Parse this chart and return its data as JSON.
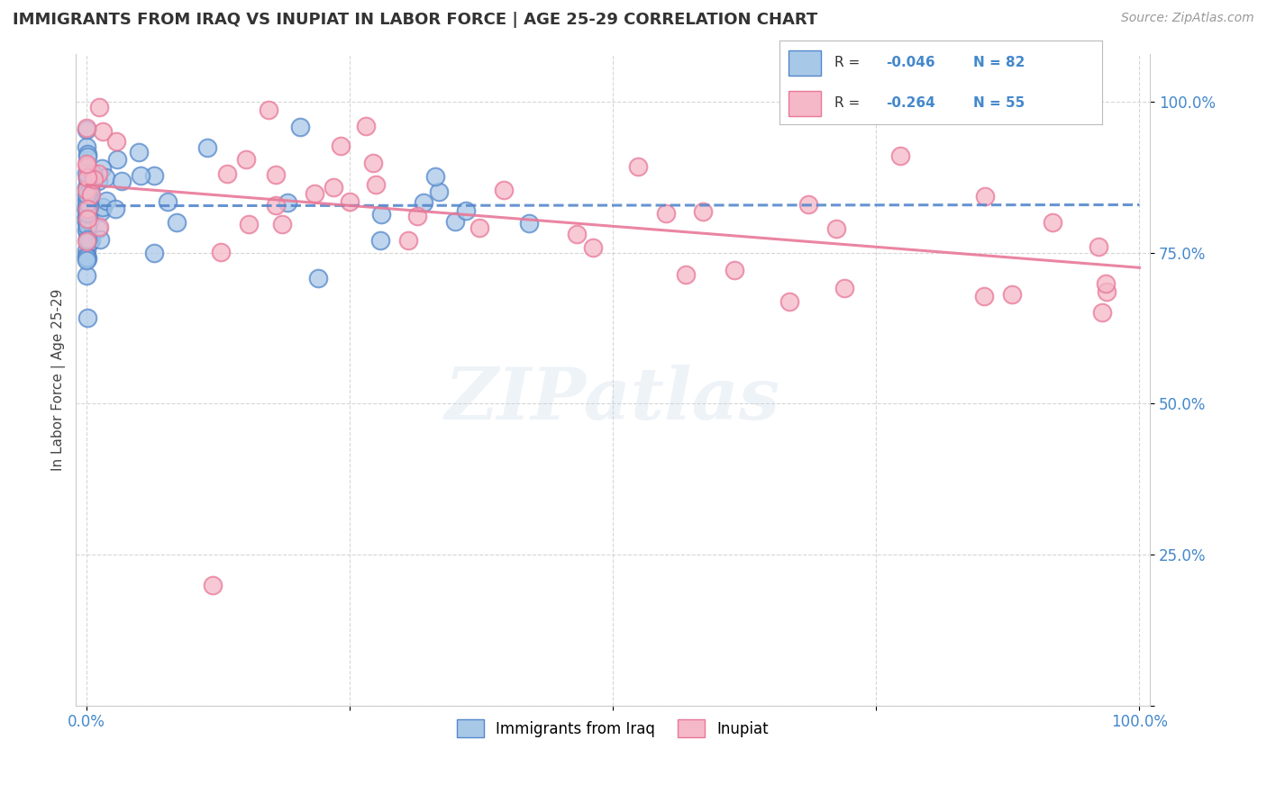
{
  "title": "IMMIGRANTS FROM IRAQ VS INUPIAT IN LABOR FORCE | AGE 25-29 CORRELATION CHART",
  "source": "Source: ZipAtlas.com",
  "ylabel": "In Labor Force | Age 25-29",
  "xlim": [
    -0.01,
    1.01
  ],
  "ylim": [
    0.0,
    1.08
  ],
  "xticks": [
    0.0,
    0.25,
    0.5,
    0.75,
    1.0
  ],
  "yticks": [
    0.0,
    0.25,
    0.5,
    0.75,
    1.0
  ],
  "xtick_labels": [
    "0.0%",
    "",
    "",
    "",
    "100.0%"
  ],
  "ytick_labels_right": [
    "",
    "25.0%",
    "50.0%",
    "75.0%",
    "100.0%"
  ],
  "series1_name": "Immigrants from Iraq",
  "series1_color": "#a8c8e8",
  "series1_edge_color": "#5588cc",
  "series1_R": -0.046,
  "series1_N": 82,
  "series2_name": "Inupiat",
  "series2_color": "#f5b8c8",
  "series2_edge_color": "#e87898",
  "series2_R": -0.264,
  "series2_N": 55,
  "watermark": "ZIPatlas",
  "background_color": "#ffffff",
  "grid_color": "#cccccc",
  "title_color": "#333333",
  "axis_label_color": "#444444",
  "tick_color_blue": "#4488cc",
  "legend_R_color": "#4488cc",
  "line1_color": "#5588cc",
  "line2_color": "#e87898"
}
